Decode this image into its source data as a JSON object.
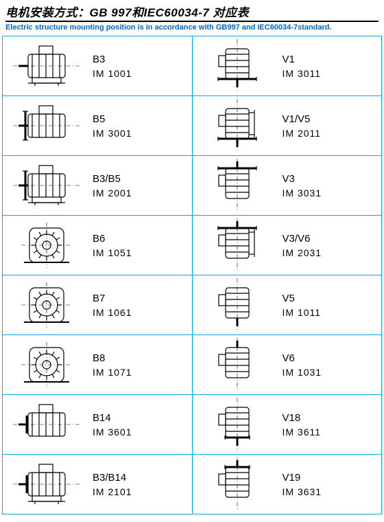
{
  "header": {
    "title_cn": "电机安装方式：GB 997和IEC60034-7 对应表",
    "title_en": "Electric structure mounting position is in accordance with GB997 and IEC60034-7standard."
  },
  "colors": {
    "border": "#00aaee",
    "link": "#0066cc",
    "text": "#000000"
  },
  "rows": [
    {
      "left": {
        "code": "B3",
        "im": "IM 1001",
        "glyph": "side-foot"
      },
      "right": {
        "code": "V1",
        "im": "IM 3011",
        "glyph": "vert-flange-down"
      }
    },
    {
      "left": {
        "code": "B5",
        "im": "IM 3001",
        "glyph": "side-flange"
      },
      "right": {
        "code": "V1/V5",
        "im": "IM 2011",
        "glyph": "vert-flange-foot"
      }
    },
    {
      "left": {
        "code": "B3/B5",
        "im": "IM 2001",
        "glyph": "side-foot-flange"
      },
      "right": {
        "code": "V3",
        "im": "IM 3031",
        "glyph": "vert-flange-up"
      }
    },
    {
      "left": {
        "code": "B6",
        "im": "IM 1051",
        "glyph": "axial-gear"
      },
      "right": {
        "code": "V3/V6",
        "im": "IM 2031",
        "glyph": "vert-flange-foot-up"
      }
    },
    {
      "left": {
        "code": "B7",
        "im": "IM 1061",
        "glyph": "axial-gear"
      },
      "right": {
        "code": "V5",
        "im": "IM 1011",
        "glyph": "vert-plain-down"
      }
    },
    {
      "left": {
        "code": "B8",
        "im": "IM 1071",
        "glyph": "axial-gear"
      },
      "right": {
        "code": "V6",
        "im": "IM 1031",
        "glyph": "vert-plain-up"
      }
    },
    {
      "left": {
        "code": "B14",
        "im": "IM 3601",
        "glyph": "side-smallflange"
      },
      "right": {
        "code": "V18",
        "im": "IM 3611",
        "glyph": "vert-small-down"
      }
    },
    {
      "left": {
        "code": "B3/B14",
        "im": "IM 2101",
        "glyph": "side-foot-small"
      },
      "right": {
        "code": "V19",
        "im": "IM 3631",
        "glyph": "vert-small-up"
      }
    }
  ]
}
